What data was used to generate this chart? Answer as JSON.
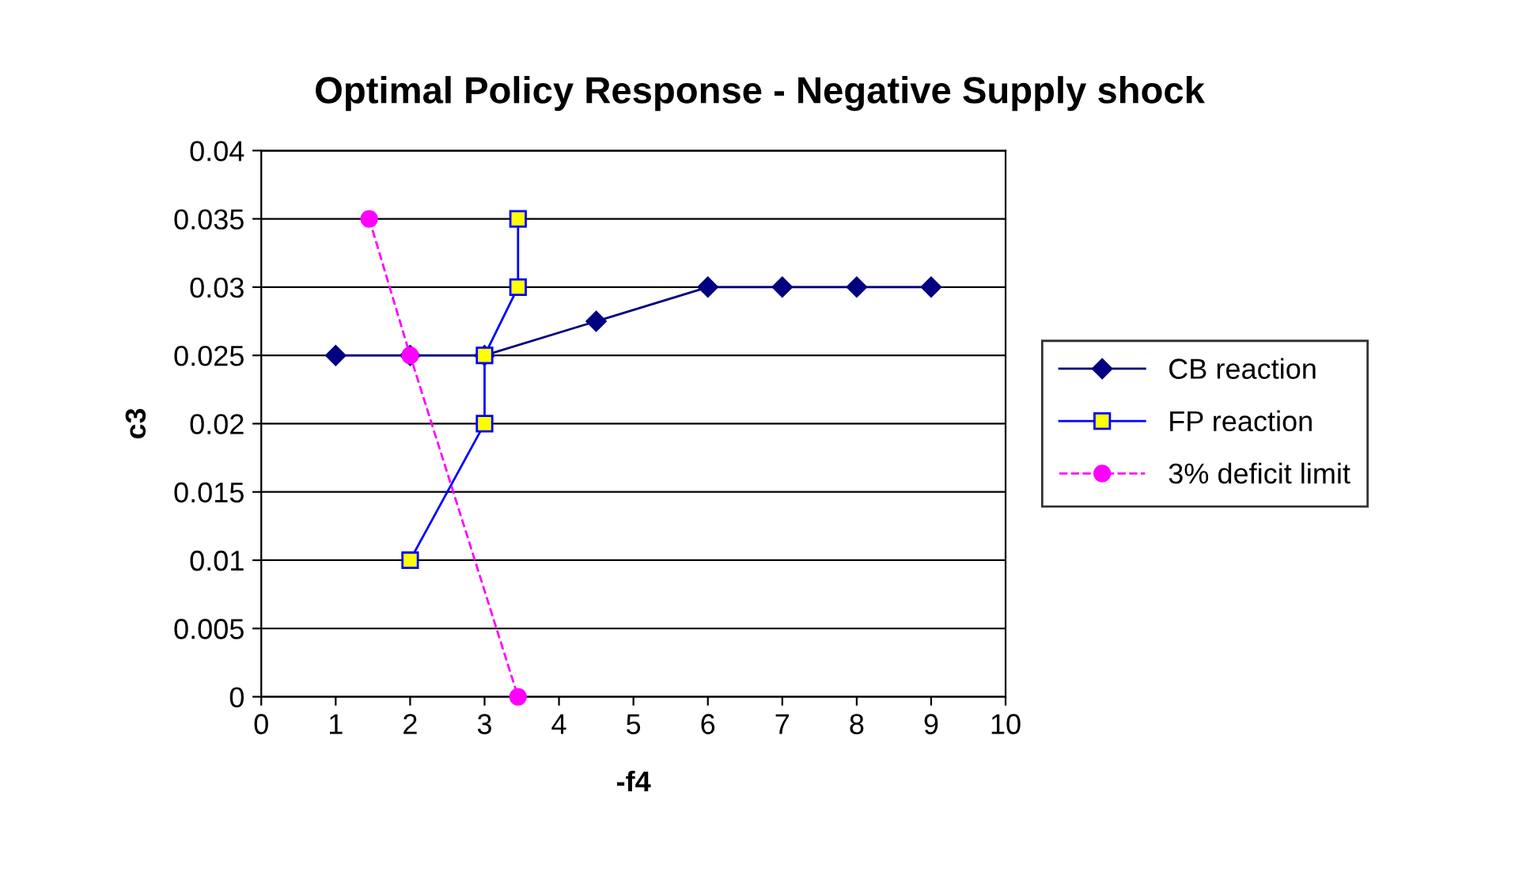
{
  "chart_data": {
    "type": "line",
    "title": "Optimal Policy Response - Negative Supply shock",
    "xlabel": "-f4",
    "ylabel": "c3",
    "xlim": [
      0,
      10
    ],
    "xticks": [
      0,
      1,
      2,
      3,
      4,
      5,
      6,
      7,
      8,
      9,
      10
    ],
    "ylim": [
      0,
      0.04
    ],
    "yticks": [
      0,
      0.005,
      0.01,
      0.015,
      0.02,
      0.025,
      0.03,
      0.035,
      0.04
    ],
    "grid": "y",
    "legend": "right",
    "series": [
      {
        "name": "CB reaction",
        "color": "#000080",
        "marker": "diamond",
        "line_style": "solid",
        "x": [
          1,
          2,
          3,
          4.5,
          6,
          7,
          8,
          9
        ],
        "values": [
          0.025,
          0.025,
          0.025,
          0.0275,
          0.03,
          0.03,
          0.03,
          0.03
        ]
      },
      {
        "name": "FP reaction",
        "color": "#0000ff",
        "marker": "square",
        "line_style": "solid",
        "x": [
          2,
          3,
          3,
          3.45,
          3.45
        ],
        "values": [
          0.01,
          0.02,
          0.025,
          0.03,
          0.035
        ]
      },
      {
        "name": "3% deficit limit",
        "color": "#ff00ff",
        "marker": "circle",
        "line_style": "dashed",
        "x": [
          1.45,
          2,
          3.45
        ],
        "values": [
          0.035,
          0.025,
          0
        ]
      }
    ]
  }
}
